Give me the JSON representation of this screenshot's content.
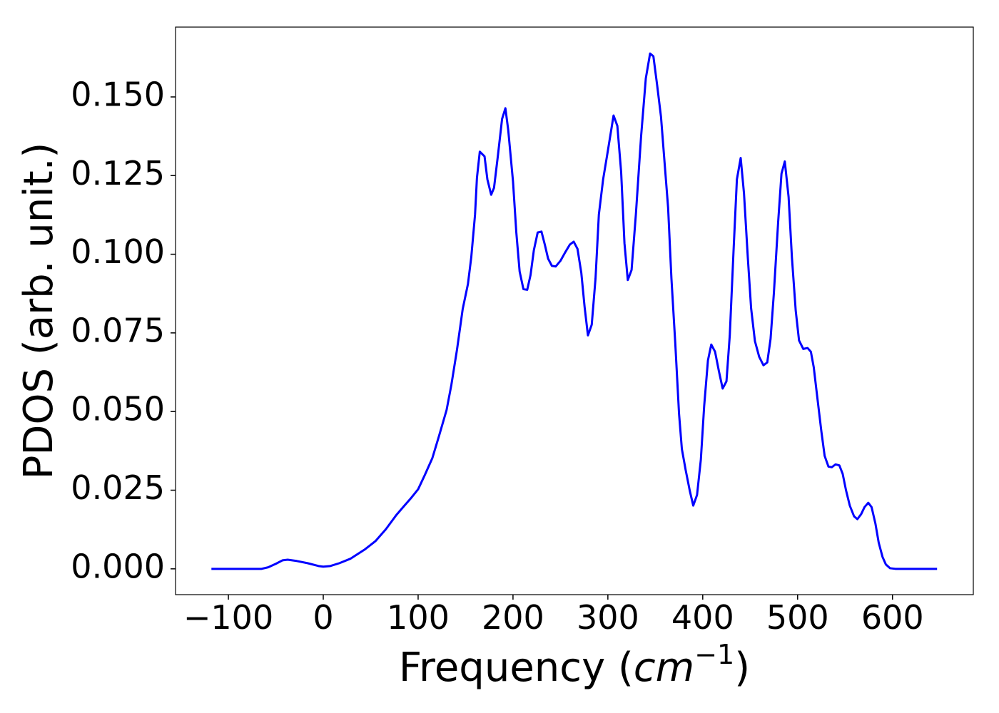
{
  "chart_data": {
    "type": "line",
    "ylabel": "PDOS (arb. unit.)",
    "xlabel": [
      "Frequency (",
      "cm",
      "−1",
      ")"
    ],
    "color": "#0000ff",
    "xlim": [
      -155.7,
      685.2
    ],
    "ylim": [
      -0.0082,
      0.1722
    ],
    "xticks": [
      {
        "value": -100,
        "label": "−100"
      },
      0,
      100,
      200,
      300,
      400,
      500,
      600
    ],
    "yticks": [
      {
        "value": 0,
        "label": "0.000"
      },
      {
        "value": 0.025,
        "label": "0.025"
      },
      {
        "value": 0.05,
        "label": "0.050"
      },
      {
        "value": 0.075,
        "label": "0.075"
      },
      {
        "value": 0.1,
        "label": "0.100"
      },
      {
        "value": 0.125,
        "label": "0.125"
      },
      {
        "value": 0.15,
        "label": "0.150"
      }
    ],
    "x": [
      -117.9,
      -65,
      -58,
      -50,
      -43,
      -37.5,
      -28,
      -16.5,
      -5,
      0,
      7.5,
      17,
      28.5,
      43.5,
      55,
      66,
      77,
      85,
      92,
      100,
      107,
      115,
      122,
      130,
      135,
      141,
      147,
      152.5,
      156,
      160,
      162,
      165,
      170,
      173,
      177,
      180,
      184,
      188.5,
      192,
      195,
      200,
      203.5,
      207,
      211,
      215,
      218.5,
      222,
      226,
      230,
      233.5,
      237,
      241,
      245,
      250,
      255,
      260,
      264,
      268,
      272,
      275.5,
      279,
      283,
      287,
      290.5,
      295,
      300,
      306,
      310,
      314,
      317.5,
      321,
      325,
      329.5,
      335,
      340,
      344.5,
      348,
      352,
      356,
      359.5,
      363.5,
      367,
      371,
      375,
      378,
      382,
      386.5,
      390,
      394,
      398,
      401.5,
      405.5,
      409,
      413,
      417,
      421,
      425,
      428.5,
      432.5,
      436,
      440,
      443.5,
      447.5,
      451,
      455,
      459.5,
      464,
      468,
      471.5,
      475,
      479.5,
      483,
      486.5,
      490.5,
      494,
      498,
      501.5,
      506,
      510.5,
      514,
      517,
      521,
      525,
      528.5,
      532.5,
      536,
      540,
      544,
      547.5,
      551,
      555,
      559.5,
      563,
      567,
      570.5,
      574.5,
      578,
      582,
      585.5,
      589.5,
      593,
      597.5,
      603,
      647
    ],
    "values": [
      0,
      0,
      0.0005,
      0.0016,
      0.0027,
      0.0029,
      0.0025,
      0.0018,
      0.0009,
      0.0007,
      0.0009,
      0.0018,
      0.0032,
      0.0061,
      0.0088,
      0.0126,
      0.0171,
      0.0199,
      0.0223,
      0.0253,
      0.0298,
      0.0352,
      0.0422,
      0.0505,
      0.0584,
      0.0697,
      0.0826,
      0.0905,
      0.099,
      0.1126,
      0.1243,
      0.1326,
      0.1311,
      0.1238,
      0.1189,
      0.1211,
      0.1311,
      0.143,
      0.1464,
      0.1394,
      0.1232,
      0.1069,
      0.0945,
      0.0889,
      0.0887,
      0.0934,
      0.1013,
      0.1069,
      0.1072,
      0.1031,
      0.0986,
      0.0963,
      0.0961,
      0.0979,
      0.1006,
      0.1031,
      0.104,
      0.1017,
      0.0941,
      0.0832,
      0.0742,
      0.0776,
      0.0923,
      0.1126,
      0.1238,
      0.1329,
      0.1441,
      0.1408,
      0.1261,
      0.1035,
      0.0918,
      0.095,
      0.1126,
      0.1374,
      0.1559,
      0.1638,
      0.1629,
      0.1536,
      0.1437,
      0.1302,
      0.1148,
      0.0923,
      0.072,
      0.0494,
      0.0381,
      0.0314,
      0.0246,
      0.0201,
      0.0235,
      0.0347,
      0.0517,
      0.0663,
      0.0713,
      0.069,
      0.0629,
      0.0573,
      0.0596,
      0.0742,
      0.1013,
      0.1238,
      0.1306,
      0.1193,
      0.099,
      0.0828,
      0.0724,
      0.0674,
      0.0647,
      0.0656,
      0.0731,
      0.0877,
      0.1103,
      0.1256,
      0.1295,
      0.1182,
      0.099,
      0.0821,
      0.0726,
      0.0699,
      0.0702,
      0.069,
      0.0641,
      0.0539,
      0.0438,
      0.0359,
      0.0325,
      0.0323,
      0.0332,
      0.0329,
      0.0302,
      0.025,
      0.0201,
      0.0167,
      0.0158,
      0.0174,
      0.0196,
      0.021,
      0.0196,
      0.0144,
      0.0083,
      0.0038,
      0.0014,
      0.0002,
      0,
      0
    ]
  }
}
